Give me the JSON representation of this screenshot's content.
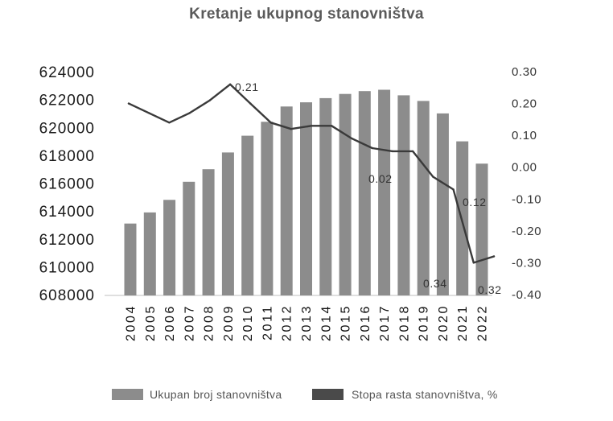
{
  "chart_data": {
    "type": "bar",
    "title": "Kretanje ukupnog stanovništva",
    "xlabel": "",
    "ylabel": "",
    "categories": [
      "2004",
      "2005",
      "2006",
      "2007",
      "2008",
      "2009",
      "2010",
      "2011",
      "2012",
      "2013",
      "2014",
      "2015",
      "2016",
      "2017",
      "2018",
      "2019",
      "2020",
      "2021",
      "2022"
    ],
    "series": [
      {
        "name": "Ukupan broj stanovništva",
        "type": "bar",
        "axis": "left",
        "color": "#8c8c8c",
        "values": [
          613100,
          613900,
          614800,
          616100,
          617000,
          618200,
          619400,
          620400,
          621500,
          621800,
          622100,
          622400,
          622600,
          622700,
          622300,
          621900,
          621000,
          619000,
          617400
        ]
      },
      {
        "name": "Stopa rasta stanovništva, %",
        "type": "line",
        "axis": "right",
        "color": "#3a3a3a",
        "values": [
          0.2,
          0.17,
          0.14,
          0.17,
          0.21,
          0.26,
          0.2,
          0.14,
          0.12,
          0.13,
          0.13,
          0.09,
          0.06,
          0.05,
          0.05,
          -0.03,
          -0.07,
          -0.3,
          -0.28
        ]
      }
    ],
    "y_left": {
      "ylim": [
        608000,
        624000
      ],
      "ticks": [
        "624000",
        "622000",
        "620000",
        "618000",
        "616000",
        "614000",
        "612000",
        "610000",
        "608000"
      ]
    },
    "y_right": {
      "ylim": [
        -0.4,
        0.3
      ],
      "ticks": [
        "0.30",
        "0.20",
        "0.10",
        "0.00",
        "-0.10",
        "-0.20",
        "-0.30",
        "-0.40"
      ]
    },
    "annotations": [
      "0.21",
      "0.02",
      "0.12",
      "0.34",
      "0.32"
    ],
    "legend": "bottom",
    "grid": false
  },
  "colors": {
    "title": "#5a5a5a",
    "axis_line": "#bfbfbf",
    "legend_line_swatch": "#4a4a4a"
  }
}
